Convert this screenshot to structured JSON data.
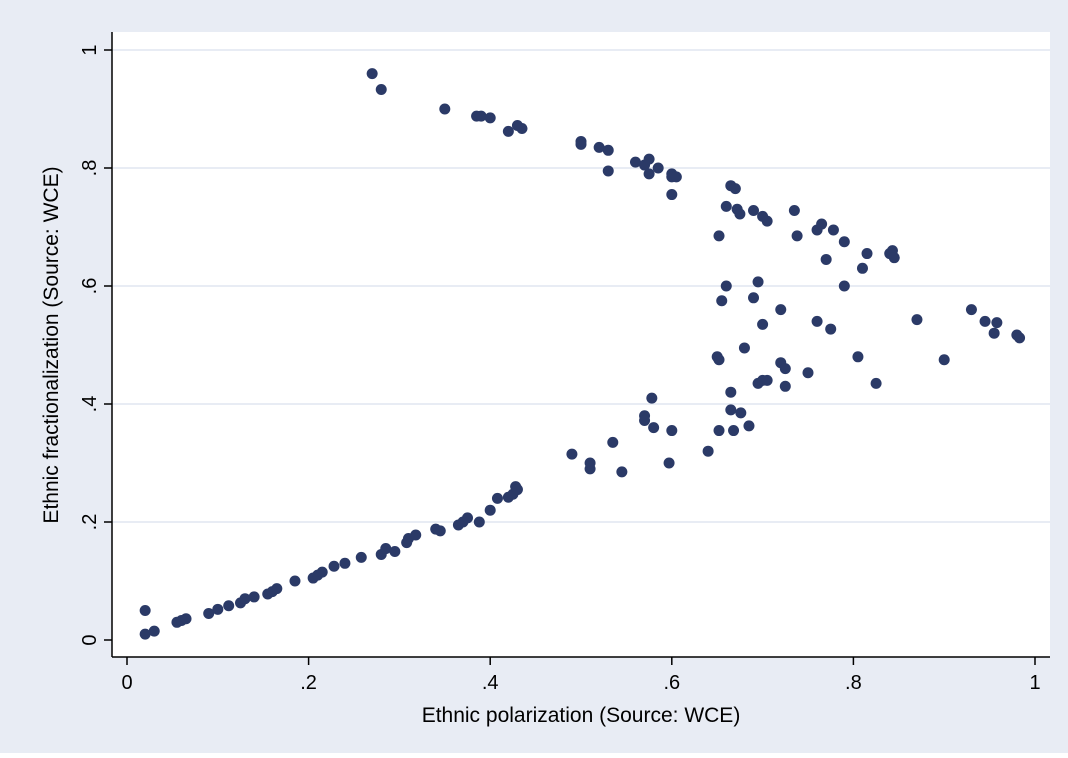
{
  "chart_data": {
    "type": "scatter",
    "title": "",
    "xlabel": "Ethnic polarization (Source: WCE)",
    "ylabel": "Ethnic fractionalization (Source: WCE)",
    "xlim": [
      0,
      1
    ],
    "ylim": [
      0,
      1
    ],
    "xticks": [
      0,
      0.2,
      0.4,
      0.6,
      0.8,
      1
    ],
    "xtick_labels": [
      "0",
      ".2",
      ".4",
      ".6",
      ".8",
      "1"
    ],
    "yticks": [
      0,
      0.2,
      0.4,
      0.6,
      0.8,
      1
    ],
    "ytick_labels": [
      "0",
      ".2",
      ".4",
      ".6",
      ".8",
      "1"
    ],
    "grid": "horizontal",
    "legend": "none",
    "colors": {
      "frame": "#e8ecf4",
      "plot": "#ffffff",
      "marker": "#2b3a67",
      "grid": "#e8ecf4"
    },
    "points": [
      [
        0.02,
        0.05
      ],
      [
        0.02,
        0.01
      ],
      [
        0.03,
        0.015
      ],
      [
        0.055,
        0.03
      ],
      [
        0.06,
        0.033
      ],
      [
        0.065,
        0.036
      ],
      [
        0.09,
        0.045
      ],
      [
        0.1,
        0.052
      ],
      [
        0.112,
        0.058
      ],
      [
        0.125,
        0.063
      ],
      [
        0.13,
        0.07
      ],
      [
        0.14,
        0.073
      ],
      [
        0.155,
        0.078
      ],
      [
        0.16,
        0.082
      ],
      [
        0.165,
        0.087
      ],
      [
        0.185,
        0.1
      ],
      [
        0.205,
        0.105
      ],
      [
        0.21,
        0.11
      ],
      [
        0.215,
        0.115
      ],
      [
        0.228,
        0.125
      ],
      [
        0.24,
        0.13
      ],
      [
        0.258,
        0.14
      ],
      [
        0.28,
        0.145
      ],
      [
        0.285,
        0.155
      ],
      [
        0.295,
        0.15
      ],
      [
        0.308,
        0.165
      ],
      [
        0.31,
        0.172
      ],
      [
        0.318,
        0.178
      ],
      [
        0.34,
        0.188
      ],
      [
        0.345,
        0.185
      ],
      [
        0.365,
        0.195
      ],
      [
        0.37,
        0.2
      ],
      [
        0.375,
        0.207
      ],
      [
        0.388,
        0.2
      ],
      [
        0.4,
        0.22
      ],
      [
        0.408,
        0.24
      ],
      [
        0.42,
        0.242
      ],
      [
        0.425,
        0.247
      ],
      [
        0.428,
        0.26
      ],
      [
        0.43,
        0.255
      ],
      [
        0.49,
        0.315
      ],
      [
        0.51,
        0.29
      ],
      [
        0.51,
        0.3
      ],
      [
        0.535,
        0.335
      ],
      [
        0.545,
        0.285
      ],
      [
        0.57,
        0.38
      ],
      [
        0.57,
        0.372
      ],
      [
        0.578,
        0.41
      ],
      [
        0.58,
        0.36
      ],
      [
        0.597,
        0.3
      ],
      [
        0.6,
        0.355
      ],
      [
        0.64,
        0.32
      ],
      [
        0.65,
        0.48
      ],
      [
        0.652,
        0.475
      ],
      [
        0.652,
        0.355
      ],
      [
        0.665,
        0.39
      ],
      [
        0.665,
        0.42
      ],
      [
        0.668,
        0.355
      ],
      [
        0.676,
        0.385
      ],
      [
        0.68,
        0.495
      ],
      [
        0.685,
        0.363
      ],
      [
        0.695,
        0.435
      ],
      [
        0.7,
        0.44
      ],
      [
        0.705,
        0.44
      ],
      [
        0.72,
        0.47
      ],
      [
        0.725,
        0.46
      ],
      [
        0.725,
        0.43
      ],
      [
        0.75,
        0.453
      ],
      [
        0.655,
        0.575
      ],
      [
        0.66,
        0.6
      ],
      [
        0.69,
        0.58
      ],
      [
        0.695,
        0.607
      ],
      [
        0.7,
        0.535
      ],
      [
        0.72,
        0.56
      ],
      [
        0.76,
        0.54
      ],
      [
        0.775,
        0.527
      ],
      [
        0.79,
        0.6
      ],
      [
        0.805,
        0.48
      ],
      [
        0.825,
        0.435
      ],
      [
        0.87,
        0.543
      ],
      [
        0.9,
        0.475
      ],
      [
        0.93,
        0.56
      ],
      [
        0.945,
        0.54
      ],
      [
        0.955,
        0.52
      ],
      [
        0.958,
        0.538
      ],
      [
        0.98,
        0.517
      ],
      [
        0.983,
        0.512
      ],
      [
        0.27,
        0.96
      ],
      [
        0.28,
        0.933
      ],
      [
        0.35,
        0.9
      ],
      [
        0.385,
        0.888
      ],
      [
        0.39,
        0.888
      ],
      [
        0.4,
        0.885
      ],
      [
        0.42,
        0.862
      ],
      [
        0.43,
        0.872
      ],
      [
        0.435,
        0.867
      ],
      [
        0.5,
        0.845
      ],
      [
        0.5,
        0.84
      ],
      [
        0.52,
        0.835
      ],
      [
        0.53,
        0.83
      ],
      [
        0.53,
        0.795
      ],
      [
        0.56,
        0.81
      ],
      [
        0.57,
        0.805
      ],
      [
        0.575,
        0.815
      ],
      [
        0.575,
        0.79
      ],
      [
        0.585,
        0.8
      ],
      [
        0.6,
        0.79
      ],
      [
        0.6,
        0.785
      ],
      [
        0.6,
        0.755
      ],
      [
        0.605,
        0.785
      ],
      [
        0.652,
        0.685
      ],
      [
        0.66,
        0.735
      ],
      [
        0.665,
        0.77
      ],
      [
        0.67,
        0.765
      ],
      [
        0.672,
        0.73
      ],
      [
        0.675,
        0.722
      ],
      [
        0.69,
        0.728
      ],
      [
        0.7,
        0.718
      ],
      [
        0.705,
        0.71
      ],
      [
        0.735,
        0.728
      ],
      [
        0.738,
        0.685
      ],
      [
        0.76,
        0.695
      ],
      [
        0.765,
        0.705
      ],
      [
        0.77,
        0.645
      ],
      [
        0.778,
        0.695
      ],
      [
        0.79,
        0.675
      ],
      [
        0.81,
        0.63
      ],
      [
        0.815,
        0.655
      ],
      [
        0.84,
        0.655
      ],
      [
        0.843,
        0.66
      ],
      [
        0.845,
        0.648
      ]
    ]
  }
}
